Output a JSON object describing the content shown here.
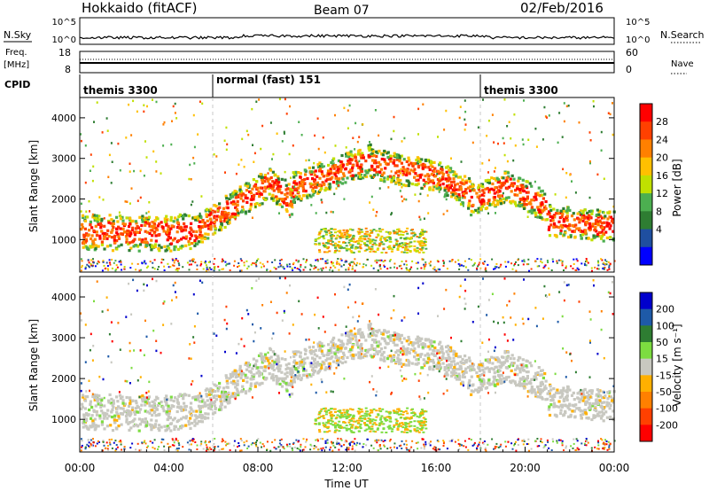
{
  "header": {
    "station": "Hokkaido (fitACF)",
    "beam": "Beam 07",
    "date": "02/Feb/2016"
  },
  "top_panels": {
    "nsky_label": "N.Sky",
    "nsky_ticks": [
      "10^5",
      "10^0"
    ],
    "nsearch_label": "N.Search",
    "nsearch_ticks": [
      "10^5",
      "10^0"
    ],
    "freq_label_1": "Freq.",
    "freq_label_2": "[MHz]",
    "freq_ticks": [
      "18",
      "8"
    ],
    "nave_label": "Nave",
    "nave_ticks": [
      "60",
      "0"
    ],
    "cpid_label": "CPID",
    "cpid_segments": [
      {
        "label": "themis 3300",
        "start_h": 0
      },
      {
        "label": "normal (fast) 151",
        "start_h": 6
      },
      {
        "label": "themis 3300",
        "start_h": 18
      }
    ]
  },
  "colors": {
    "power_scale": [
      "#0000ff",
      "#1f4fa0",
      "#2e7d32",
      "#4caf50",
      "#c0e000",
      "#ffc000",
      "#ff8000",
      "#ff4000",
      "#ff0000"
    ],
    "velocity_scale": [
      "#0000cc",
      "#1e5aa8",
      "#2e7d32",
      "#7cdc40",
      "#c8c8c0",
      "#ffb000",
      "#ff8000",
      "#ff4000",
      "#ff0000"
    ]
  },
  "chart_data": [
    {
      "type": "heatmap",
      "panel": "power",
      "ylabel": "Slant Range [km]",
      "yticks": [
        1000,
        2000,
        3000,
        4000
      ],
      "ylim": [
        200,
        4500
      ],
      "xlim_hours": [
        0,
        24
      ],
      "colorbar_label": "Power [dB]",
      "colorbar_ticks": [
        4,
        8,
        12,
        16,
        20,
        24,
        28
      ]
    },
    {
      "type": "heatmap",
      "panel": "velocity",
      "ylabel": "Slant Range [km]",
      "yticks": [
        1000,
        2000,
        3000,
        4000
      ],
      "ylim": [
        200,
        4500
      ],
      "xlim_hours": [
        0,
        24
      ],
      "colorbar_label": "Velocity [m s⁻¹]",
      "colorbar_ticks": [
        200,
        100,
        50,
        15,
        -15,
        -50,
        -100,
        -200
      ]
    }
  ],
  "x_axis": {
    "label": "Time UT",
    "ticks": [
      "00:00",
      "04:00",
      "08:00",
      "12:00",
      "16:00",
      "20:00",
      "00:00"
    ]
  }
}
